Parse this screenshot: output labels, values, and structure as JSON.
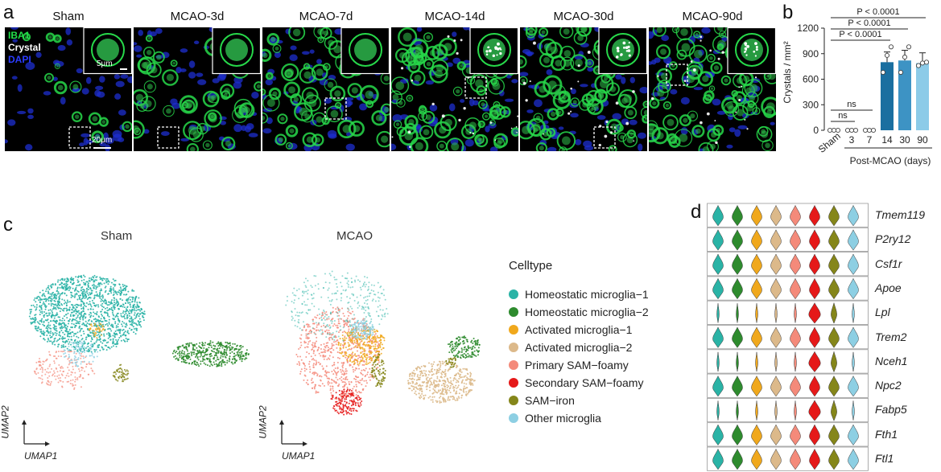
{
  "panel_letters": {
    "a": "a",
    "b": "b",
    "c": "c",
    "d": "d"
  },
  "panel_a": {
    "stain_labels": [
      "IBA1",
      "Crystal",
      "DAPI"
    ],
    "stain_colors": [
      "#22e04a",
      "#ffffff",
      "#2b3cff"
    ],
    "scale_inset": "5μm",
    "scale_main": "20μm",
    "conditions": [
      "Sham",
      "MCAO-3d",
      "MCAO-7d",
      "MCAO-14d",
      "MCAO-30d",
      "MCAO-90d"
    ]
  },
  "chart_data": {
    "type": "bar",
    "ylabel": "Crystals / mm²",
    "xlabel": "Post-MCAO (days)",
    "categories": [
      "Sham",
      "3",
      "7",
      "14",
      "30",
      "90"
    ],
    "values": [
      0,
      0,
      0,
      800,
      820,
      790
    ],
    "points": [
      [
        0,
        0,
        0
      ],
      [
        0,
        0,
        0
      ],
      [
        0,
        0,
        0
      ],
      [
        680,
        880,
        980
      ],
      [
        680,
        860,
        980
      ],
      [
        760,
        790,
        800
      ]
    ],
    "colors": [
      "#1a6fa0",
      "#1a6fa0",
      "#1a6fa0",
      "#1a6fa0",
      "#3d93c4",
      "#8ccbe8"
    ],
    "ylim": [
      0,
      1200
    ],
    "yticks": [
      0,
      300,
      600,
      900,
      1200
    ],
    "annotations": [
      {
        "text": "P < 0.0001",
        "from": "Sham",
        "to": "90"
      },
      {
        "text": "P < 0.0001",
        "from": "Sham",
        "to": "30"
      },
      {
        "text": "P < 0.0001",
        "from": "Sham",
        "to": "14"
      },
      {
        "text": "ns",
        "from": "Sham",
        "to": "7"
      },
      {
        "text": "ns",
        "from": "Sham",
        "to": "3"
      }
    ]
  },
  "panel_c": {
    "titles": [
      "Sham",
      "MCAO"
    ],
    "x_axis": "UMAP1",
    "y_axis": "UMAP2",
    "legend_title": "Celltype",
    "celltypes": [
      {
        "name": "Homeostatic microglia−1",
        "color": "#2ab3a6"
      },
      {
        "name": "Homeostatic microglia−2",
        "color": "#2e8b2e"
      },
      {
        "name": "Activated microglia−1",
        "color": "#f0a81c"
      },
      {
        "name": "Activated microglia−2",
        "color": "#dcb98a"
      },
      {
        "name": "Primary SAM−foamy",
        "color": "#f48a7a"
      },
      {
        "name": "Secondary SAM−foamy",
        "color": "#e51919"
      },
      {
        "name": "SAM−iron",
        "color": "#85861a"
      },
      {
        "name": "Other microglia",
        "color": "#8dcfe3"
      }
    ]
  },
  "panel_d": {
    "genes": [
      "Tmem119",
      "P2ry12",
      "Csf1r",
      "Apoe",
      "Lpl",
      "Trem2",
      "Nceh1",
      "Npc2",
      "Fabp5",
      "Fth1",
      "Ftl1"
    ]
  }
}
